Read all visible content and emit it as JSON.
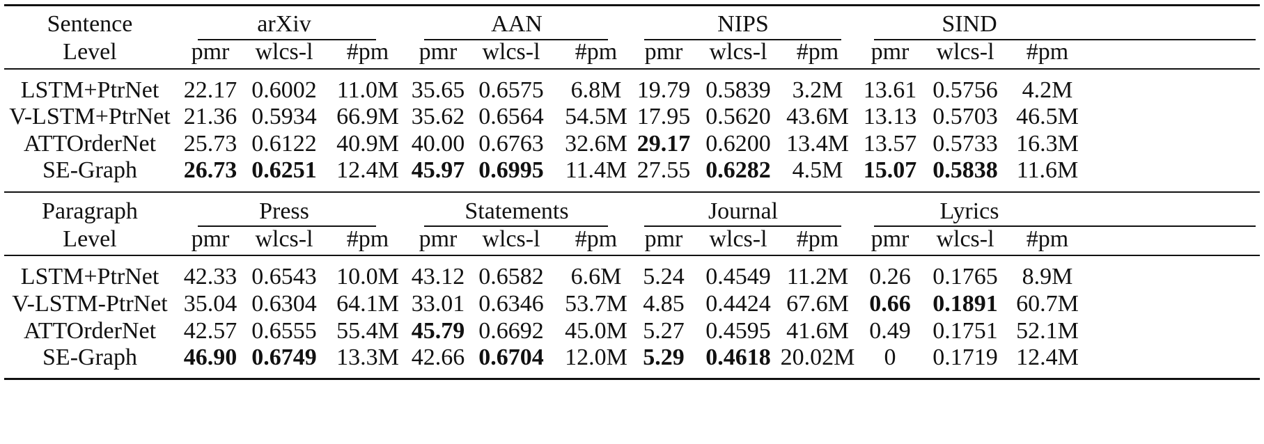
{
  "sections": [
    {
      "level_line1": "Sentence",
      "level_line2": "Level",
      "datasets": [
        "arXiv",
        "AAN",
        "NIPS",
        "SIND"
      ],
      "metrics": [
        "pmr",
        "wlcs-l",
        "#pm",
        "pmr",
        "wlcs-l",
        "#pm",
        "pmr",
        "wlcs-l",
        "#pm",
        "pmr",
        "wlcs-l",
        "#pm"
      ],
      "rows": [
        {
          "model": "LSTM+PtrNet",
          "values": [
            "22.17",
            "0.6002",
            "11.0M",
            "35.65",
            "0.6575",
            "6.8M",
            "19.79",
            "0.5839",
            "3.2M",
            "13.61",
            "0.5756",
            "4.2M"
          ],
          "bold": []
        },
        {
          "model": "V-LSTM+PtrNet",
          "values": [
            "21.36",
            "0.5934",
            "66.9M",
            "35.62",
            "0.6564",
            "54.5M",
            "17.95",
            "0.5620",
            "43.6M",
            "13.13",
            "0.5703",
            "46.5M"
          ],
          "bold": []
        },
        {
          "model": "ATTOrderNet",
          "values": [
            "25.73",
            "0.6122",
            "40.9M",
            "40.00",
            "0.6763",
            "32.6M",
            "29.17",
            "0.6200",
            "13.4M",
            "13.57",
            "0.5733",
            "16.3M"
          ],
          "bold": [
            6
          ]
        },
        {
          "model": "SE-Graph",
          "values": [
            "26.73",
            "0.6251",
            "12.4M",
            "45.97",
            "0.6995",
            "11.4M",
            "27.55",
            "0.6282",
            "4.5M",
            "15.07",
            "0.5838",
            "11.6M"
          ],
          "bold": [
            0,
            1,
            3,
            4,
            7,
            9,
            10
          ]
        }
      ]
    },
    {
      "level_line1": "Paragraph",
      "level_line2": "Level",
      "datasets": [
        "Press",
        "Statements",
        "Journal",
        "Lyrics"
      ],
      "metrics": [
        "pmr",
        "wlcs-l",
        "#pm",
        "pmr",
        "wlcs-l",
        "#pm",
        "pmr",
        "wlcs-l",
        "#pm",
        "pmr",
        "wlcs-l",
        "#pm"
      ],
      "rows": [
        {
          "model": "LSTM+PtrNet",
          "values": [
            "42.33",
            "0.6543",
            "10.0M",
            "43.12",
            "0.6582",
            "6.6M",
            "5.24",
            "0.4549",
            "11.2M",
            "0.26",
            "0.1765",
            "8.9M"
          ],
          "bold": []
        },
        {
          "model": "V-LSTM-PtrNet",
          "values": [
            "35.04",
            "0.6304",
            "64.1M",
            "33.01",
            "0.6346",
            "53.7M",
            "4.85",
            "0.4424",
            "67.6M",
            "0.66",
            "0.1891",
            "60.7M"
          ],
          "bold": [
            9,
            10
          ]
        },
        {
          "model": "ATTOrderNet",
          "values": [
            "42.57",
            "0.6555",
            "55.4M",
            "45.79",
            "0.6692",
            "45.0M",
            "5.27",
            "0.4595",
            "41.6M",
            "0.49",
            "0.1751",
            "52.1M"
          ],
          "bold": [
            3
          ]
        },
        {
          "model": "SE-Graph",
          "values": [
            "46.90",
            "0.6749",
            "13.3M",
            "42.66",
            "0.6704",
            "12.0M",
            "5.29",
            "0.4618",
            "20.02M",
            "0",
            "0.1719",
            "12.4M"
          ],
          "bold": [
            0,
            1,
            4,
            6,
            7
          ]
        }
      ]
    }
  ]
}
